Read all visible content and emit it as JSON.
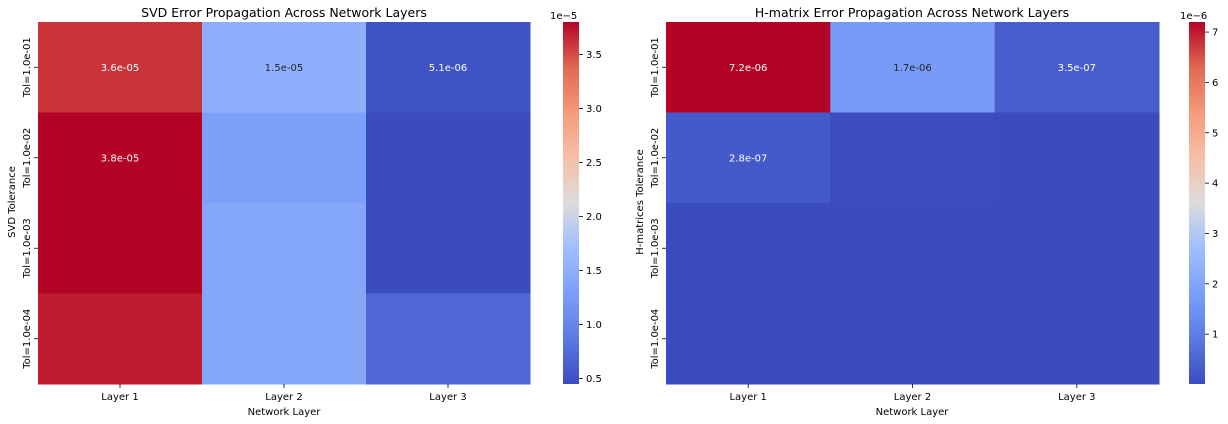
{
  "chart_data": [
    {
      "type": "heatmap",
      "title": "SVD Error Propagation Across Network Layers",
      "xlabel": "Network Layer",
      "ylabel": "SVD Tolerance",
      "columns": [
        "Layer 1",
        "Layer 2",
        "Layer 3"
      ],
      "rows": [
        "Tol=1.0e-01",
        "Tol=1.0e-02",
        "Tol=1.0e-03",
        "Tol=1.0e-04"
      ],
      "values": [
        [
          3.6e-05,
          1.5e-05,
          5.1e-06
        ],
        [
          3.8e-05,
          1.3e-05,
          4.5e-06
        ],
        [
          3.8e-05,
          1.4e-05,
          4.5e-06
        ],
        [
          3.7e-05,
          1.4e-05,
          7e-06
        ]
      ],
      "annotations": [
        {
          "row": 0,
          "col": 0,
          "text": "3.6e-05"
        },
        {
          "row": 0,
          "col": 1,
          "text": "1.5e-05"
        },
        {
          "row": 0,
          "col": 2,
          "text": "5.1e-06"
        },
        {
          "row": 1,
          "col": 0,
          "text": "3.8e-05"
        }
      ],
      "colorbar": {
        "vmin": 4.5e-06,
        "vmax": 3.8e-05,
        "ticks": [
          0.5,
          1.0,
          1.5,
          2.0,
          2.5,
          3.0,
          3.5
        ],
        "tick_labels": [
          "0.5",
          "1.0",
          "1.5",
          "2.0",
          "2.5",
          "3.0",
          "3.5"
        ],
        "multiplier": 1e-05,
        "multiplier_label": "1e−5"
      },
      "colormap": "coolwarm"
    },
    {
      "type": "heatmap",
      "title": "H-matrix Error Propagation Across Network Layers",
      "xlabel": "Network Layer",
      "ylabel": "H-matrices Tolerance",
      "columns": [
        "Layer 1",
        "Layer 2",
        "Layer 3"
      ],
      "rows": [
        "Tol=1.0e-01",
        "Tol=1.0e-02",
        "Tol=1.0e-03",
        "Tol=1.0e-04"
      ],
      "values": [
        [
          7.2e-06,
          1.7e-06,
          3.5e-07
        ],
        [
          2.8e-07,
          2e-08,
          1e-08
        ],
        [
          1e-08,
          1e-08,
          1e-08
        ],
        [
          1e-08,
          1e-08,
          1e-08
        ]
      ],
      "annotations": [
        {
          "row": 0,
          "col": 0,
          "text": "7.2e-06"
        },
        {
          "row": 0,
          "col": 1,
          "text": "1.7e-06"
        },
        {
          "row": 0,
          "col": 2,
          "text": "3.5e-07"
        },
        {
          "row": 1,
          "col": 0,
          "text": "2.8e-07"
        }
      ],
      "colorbar": {
        "vmin": 1e-08,
        "vmax": 7.2e-06,
        "ticks": [
          1,
          2,
          3,
          4,
          5,
          6,
          7
        ],
        "tick_labels": [
          "1",
          "2",
          "3",
          "4",
          "5",
          "6",
          "7"
        ],
        "multiplier": 1e-06,
        "multiplier_label": "1e−6"
      },
      "colormap": "coolwarm"
    }
  ]
}
